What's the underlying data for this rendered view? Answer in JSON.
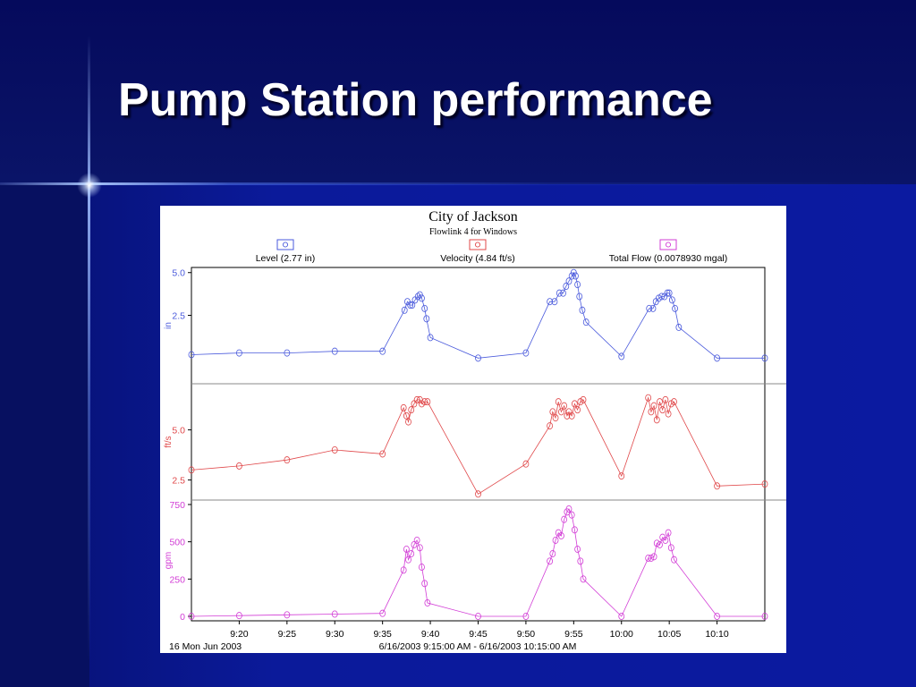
{
  "slide": {
    "title": "Pump Station performance"
  },
  "colors": {
    "level": "#4a5adc",
    "velocity": "#e0484a",
    "flow": "#d23cd6"
  },
  "chart_data": {
    "type": "line",
    "title": "City of Jackson",
    "subtitle": "Flowlink 4 for Windows",
    "legend": [
      "Level (2.77 in)",
      "Velocity (4.84 ft/s)",
      "Total Flow (0.0078930 mgal)"
    ],
    "x_tick_labels": [
      "9:20",
      "9:25",
      "9:30",
      "9:35",
      "9:40",
      "9:45",
      "9:50",
      "9:55",
      "10:00",
      "10:05",
      "10:10"
    ],
    "x_ticks_min": [
      20,
      25,
      30,
      35,
      40,
      45,
      50,
      55,
      60,
      65,
      70
    ],
    "x_range_min": [
      15,
      75
    ],
    "footer_left": "16 Mon Jun 2003",
    "footer_center": "6/16/2003 9:15:00 AM - 6/16/2003 10:15:00 AM",
    "series": [
      {
        "name": "Level",
        "ylabel": "in",
        "ylim": [
          -1.5,
          5.3
        ],
        "y_ticks": [
          2.5,
          5.0
        ],
        "y_tick_labels": [
          "2.5",
          "5.0"
        ],
        "x": [
          15,
          20,
          25,
          30,
          35,
          37.3,
          37.6,
          37.9,
          38.1,
          38.4,
          38.7,
          38.9,
          39.1,
          39.4,
          39.6,
          40,
          45,
          50,
          52.5,
          53,
          53.5,
          53.9,
          54.2,
          54.5,
          54.8,
          55,
          55.2,
          55.4,
          55.6,
          55.9,
          56.3,
          60,
          62.9,
          63.3,
          63.6,
          63.9,
          64.2,
          64.5,
          64.8,
          65,
          65.3,
          65.6,
          66,
          70,
          75
        ],
        "y": [
          0.2,
          0.3,
          0.3,
          0.4,
          0.4,
          2.8,
          3.3,
          3.1,
          3.1,
          3.4,
          3.6,
          3.7,
          3.5,
          2.9,
          2.3,
          1.2,
          0,
          0.3,
          3.3,
          3.3,
          3.8,
          3.8,
          4.2,
          4.5,
          4.8,
          5.0,
          4.8,
          4.3,
          3.6,
          2.8,
          2.1,
          0.1,
          2.9,
          2.9,
          3.3,
          3.5,
          3.6,
          3.6,
          3.8,
          3.8,
          3.4,
          2.9,
          1.8,
          0,
          0
        ]
      },
      {
        "name": "Velocity",
        "ylabel": "ft/s",
        "ylim": [
          1.5,
          7.3
        ],
        "y_ticks": [
          2.5,
          5.0
        ],
        "y_tick_labels": [
          "2.5",
          "5.0"
        ],
        "x": [
          15,
          20,
          25,
          30,
          35,
          37.2,
          37.5,
          37.7,
          38,
          38.3,
          38.6,
          38.9,
          39.1,
          39.4,
          39.7,
          45,
          50,
          52.5,
          52.8,
          53.1,
          53.4,
          53.7,
          54,
          54.3,
          54.5,
          54.8,
          55.1,
          55.4,
          55.7,
          56,
          60,
          62.8,
          63.1,
          63.4,
          63.7,
          64,
          64.3,
          64.6,
          64.9,
          65.2,
          65.5,
          70,
          75
        ],
        "y": [
          3.0,
          3.2,
          3.5,
          4.0,
          3.8,
          6.1,
          5.7,
          5.4,
          6.0,
          6.3,
          6.5,
          6.5,
          6.3,
          6.4,
          6.4,
          1.8,
          3.3,
          5.2,
          5.9,
          5.6,
          6.4,
          5.9,
          6.2,
          5.7,
          5.9,
          5.7,
          6.3,
          6.0,
          6.4,
          6.5,
          2.7,
          6.6,
          5.9,
          6.2,
          5.5,
          6.4,
          6.0,
          6.5,
          5.8,
          6.3,
          6.4,
          2.2,
          2.3
        ]
      },
      {
        "name": "Total Flow",
        "ylabel": "gpm",
        "ylim": [
          -30,
          780
        ],
        "y_ticks": [
          0,
          250,
          500,
          750
        ],
        "y_tick_labels": [
          "0",
          "250",
          "500",
          "750"
        ],
        "x": [
          15,
          20,
          25,
          30,
          35,
          37.2,
          37.5,
          37.7,
          38,
          38.3,
          38.6,
          38.9,
          39.1,
          39.4,
          39.7,
          45,
          50,
          52.5,
          52.8,
          53.1,
          53.4,
          53.7,
          54,
          54.3,
          54.5,
          54.8,
          55.1,
          55.4,
          55.7,
          56,
          60,
          62.8,
          63.1,
          63.4,
          63.7,
          64,
          64.3,
          64.6,
          64.9,
          65.2,
          65.5,
          70,
          75
        ],
        "y": [
          0,
          5,
          10,
          15,
          20,
          310,
          450,
          380,
          420,
          480,
          510,
          460,
          330,
          220,
          90,
          0,
          0,
          370,
          420,
          510,
          560,
          540,
          650,
          700,
          720,
          680,
          580,
          450,
          370,
          250,
          0,
          390,
          390,
          400,
          490,
          480,
          530,
          510,
          560,
          460,
          380,
          0,
          0
        ]
      }
    ]
  }
}
